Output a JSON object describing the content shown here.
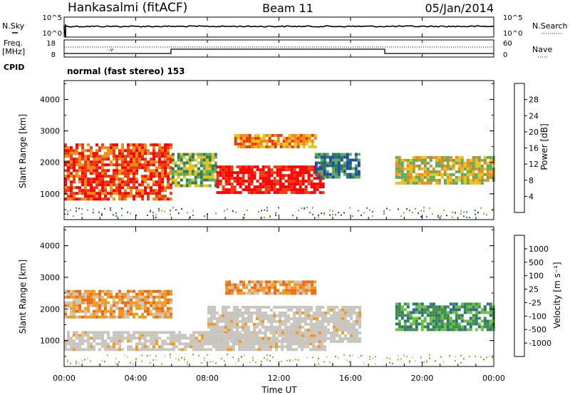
{
  "header": {
    "station": "Hankasalmi (fitACF)",
    "beam": "Beam 11",
    "date": "05/Jan/2014"
  },
  "noise_panel": {
    "left_label": "N.Sky",
    "right_label": "N.Search",
    "left_ticks": [
      "10^5",
      "10^0"
    ],
    "right_ticks": [
      "10^5",
      "10^0"
    ],
    "level": 0.7
  },
  "freq_panel": {
    "left_label_line1": "Freq.",
    "left_label_line2": "[MHz]",
    "left_ticks": [
      "18",
      "8"
    ],
    "right_ticks": [
      "60",
      "0"
    ],
    "right_label": "Nave"
  },
  "cpid": {
    "label": "CPID",
    "mode": "normal (fast stereo) 153"
  },
  "power_panel": {
    "ylabel": "Slant Range [km]",
    "yticks": [
      "1000",
      "2000",
      "3000",
      "4000"
    ],
    "colorbar_label": "Power [dB]",
    "colorbar_ticks": [
      "4",
      "8",
      "12",
      "16",
      "20",
      "24",
      "28"
    ],
    "colors": [
      "#1414ff",
      "#1f4aa6",
      "#2e7d52",
      "#5daa5d",
      "#e8c21a",
      "#f08a12",
      "#ee3b0e",
      "#ff0000"
    ]
  },
  "velocity_panel": {
    "ylabel": "Slant Range [km]",
    "yticks": [
      "1000",
      "2000",
      "3000",
      "4000"
    ],
    "colorbar_label": "Velocity [m s⁻¹]",
    "colorbar_ticks": [
      "1000",
      "500",
      "100",
      "25",
      "-25",
      "-100",
      "-500",
      "-1000"
    ],
    "colors": [
      "#1f3f9e",
      "#2e6c8a",
      "#3d8d4a",
      "#6bc03c",
      "#c8c6bf",
      "#f29a20",
      "#ef6a12",
      "#ea2810",
      "#ff0000"
    ]
  },
  "xaxis": {
    "label": "Time UT",
    "ticks": [
      "00:00",
      "04:00",
      "08:00",
      "12:00",
      "16:00",
      "20:00",
      "00:00"
    ]
  },
  "chart_data": [
    {
      "type": "heatmap",
      "title": "Power",
      "x_range": [
        "00:00",
        "24:00"
      ],
      "ylabel": "Slant Range [km]",
      "ylim": [
        180,
        4600
      ],
      "colorbar": "Power [dB]",
      "clim": [
        0,
        30
      ],
      "regions": [
        {
          "t_start": 0.0,
          "t_end": 6.0,
          "r_min": 800,
          "r_max": 2600,
          "power_db": 26
        },
        {
          "t_start": 6.0,
          "t_end": 8.5,
          "r_min": 1300,
          "r_max": 2300,
          "power_db": 12
        },
        {
          "t_start": 8.5,
          "t_end": 14.5,
          "r_min": 1000,
          "r_max": 1900,
          "power_db": 28
        },
        {
          "t_start": 9.5,
          "t_end": 14.0,
          "r_min": 2500,
          "r_max": 2900,
          "power_db": 22
        },
        {
          "t_start": 14.0,
          "t_end": 16.5,
          "r_min": 1500,
          "r_max": 2300,
          "power_db": 8
        },
        {
          "t_start": 18.5,
          "t_end": 24.0,
          "r_min": 1300,
          "r_max": 2200,
          "power_db": 16
        }
      ]
    },
    {
      "type": "heatmap",
      "title": "Velocity",
      "x_range": [
        "00:00",
        "24:00"
      ],
      "ylabel": "Slant Range [km]",
      "ylim": [
        180,
        4600
      ],
      "colorbar": "Velocity [m s-1]",
      "clim": [
        -1000,
        1000
      ],
      "regions": [
        {
          "t_start": 0.0,
          "t_end": 6.0,
          "r_min": 1700,
          "r_max": 2600,
          "velocity": -100
        },
        {
          "t_start": 0.0,
          "t_end": 14.5,
          "r_min": 700,
          "r_max": 1300,
          "velocity": 0
        },
        {
          "t_start": 8.0,
          "t_end": 16.5,
          "r_min": 1000,
          "r_max": 2100,
          "velocity": 0
        },
        {
          "t_start": 9.0,
          "t_end": 14.0,
          "r_min": 2500,
          "r_max": 2900,
          "velocity": -100
        },
        {
          "t_start": 18.5,
          "t_end": 24.0,
          "r_min": 1300,
          "r_max": 2200,
          "velocity": 100
        }
      ]
    }
  ]
}
